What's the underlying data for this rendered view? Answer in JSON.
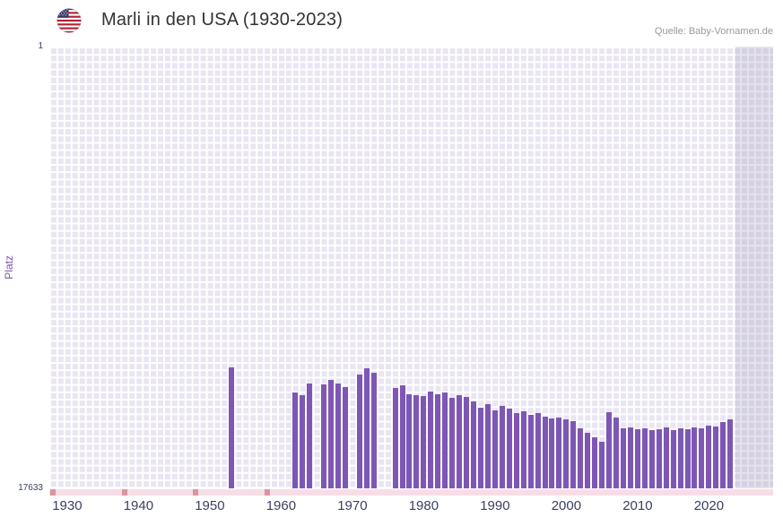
{
  "header": {
    "title": "Marli in den USA (1930-2023)",
    "source": "Quelle: Baby-Vornamen.de",
    "flag_icon": "us-flag-icon"
  },
  "chart_data": {
    "type": "bar",
    "title": "Marli in den USA (1930-2023)",
    "xlabel": "",
    "ylabel": "Platz",
    "legend": "none",
    "grid": "on",
    "y_axis": {
      "top_label": "1",
      "bottom_label": "17633",
      "min": 1,
      "max": 17633,
      "inverted_rank_axis": true
    },
    "x_domain": {
      "start": 1927.5,
      "end": 2029
    },
    "x_ticks": [
      1930,
      1940,
      1950,
      1960,
      1970,
      1980,
      1990,
      2000,
      2010,
      2020
    ],
    "colors": {
      "bar": "#7e57b5",
      "grid_cell": "#e9e5f3",
      "grid_line": "#ffffff",
      "tick_text": "#3b4162",
      "ylabel_text": "#7b52ad",
      "title_text": "#333333",
      "source_text": "#999999",
      "nodata_band": "#f7dee6",
      "nodata_mark": "#dc93a2",
      "future_shade": "rgba(160,155,185,0.28)"
    },
    "no_data_marks": [
      1928,
      1938,
      1948,
      1958
    ],
    "future_shade_from_year": 2023.7,
    "points": [
      {
        "year": 1953,
        "rank": 12800
      },
      {
        "year": 1962,
        "rank": 13800
      },
      {
        "year": 1963,
        "rank": 13900
      },
      {
        "year": 1964,
        "rank": 13450
      },
      {
        "year": 1966,
        "rank": 13500
      },
      {
        "year": 1967,
        "rank": 13300
      },
      {
        "year": 1968,
        "rank": 13450
      },
      {
        "year": 1969,
        "rank": 13600
      },
      {
        "year": 1971,
        "rank": 13100
      },
      {
        "year": 1972,
        "rank": 12850
      },
      {
        "year": 1973,
        "rank": 13000
      },
      {
        "year": 1976,
        "rank": 13630
      },
      {
        "year": 1977,
        "rank": 13520
      },
      {
        "year": 1978,
        "rank": 13880
      },
      {
        "year": 1979,
        "rank": 13910
      },
      {
        "year": 1980,
        "rank": 13950
      },
      {
        "year": 1981,
        "rank": 13770
      },
      {
        "year": 1982,
        "rank": 13880
      },
      {
        "year": 1983,
        "rank": 13810
      },
      {
        "year": 1984,
        "rank": 14020
      },
      {
        "year": 1985,
        "rank": 13910
      },
      {
        "year": 1986,
        "rank": 13980
      },
      {
        "year": 1987,
        "rank": 14160
      },
      {
        "year": 1988,
        "rank": 14410
      },
      {
        "year": 1989,
        "rank": 14270
      },
      {
        "year": 1990,
        "rank": 14520
      },
      {
        "year": 1991,
        "rank": 14340
      },
      {
        "year": 1992,
        "rank": 14450
      },
      {
        "year": 1993,
        "rank": 14630
      },
      {
        "year": 1994,
        "rank": 14560
      },
      {
        "year": 1995,
        "rank": 14700
      },
      {
        "year": 1996,
        "rank": 14630
      },
      {
        "year": 1997,
        "rank": 14770
      },
      {
        "year": 1998,
        "rank": 14840
      },
      {
        "year": 1999,
        "rank": 14810
      },
      {
        "year": 2000,
        "rank": 14880
      },
      {
        "year": 2001,
        "rank": 14950
      },
      {
        "year": 2002,
        "rank": 15240
      },
      {
        "year": 2003,
        "rank": 15420
      },
      {
        "year": 2004,
        "rank": 15590
      },
      {
        "year": 2005,
        "rank": 15770
      },
      {
        "year": 2006,
        "rank": 14590
      },
      {
        "year": 2007,
        "rank": 14810
      },
      {
        "year": 2008,
        "rank": 15240
      },
      {
        "year": 2009,
        "rank": 15200
      },
      {
        "year": 2010,
        "rank": 15270
      },
      {
        "year": 2011,
        "rank": 15240
      },
      {
        "year": 2012,
        "rank": 15310
      },
      {
        "year": 2013,
        "rank": 15270
      },
      {
        "year": 2014,
        "rank": 15200
      },
      {
        "year": 2015,
        "rank": 15310
      },
      {
        "year": 2016,
        "rank": 15240
      },
      {
        "year": 2017,
        "rank": 15270
      },
      {
        "year": 2018,
        "rank": 15200
      },
      {
        "year": 2019,
        "rank": 15240
      },
      {
        "year": 2020,
        "rank": 15130
      },
      {
        "year": 2021,
        "rank": 15170
      },
      {
        "year": 2022,
        "rank": 14990
      },
      {
        "year": 2023,
        "rank": 14880
      }
    ]
  }
}
